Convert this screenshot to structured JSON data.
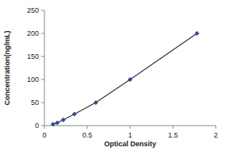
{
  "chart_data": {
    "type": "scatter",
    "x_label": "Optical Density",
    "y_label": "Concentration(ng/mL)",
    "x": [
      0.1,
      0.15,
      0.22,
      0.35,
      0.6,
      1.0,
      1.78
    ],
    "values": [
      3.12,
      6.25,
      12.5,
      25,
      50,
      100,
      200
    ],
    "color": "#2e4a9a",
    "marker": "diamond",
    "line_style": "solid",
    "xlim": [
      0,
      2
    ],
    "xticks": [
      0,
      0.5,
      1,
      1.5,
      2
    ],
    "ylim": [
      0,
      250
    ],
    "yticks": [
      0,
      50,
      100,
      150,
      200,
      250
    ],
    "grid": false
  }
}
